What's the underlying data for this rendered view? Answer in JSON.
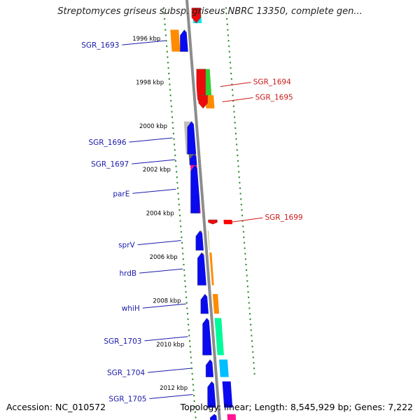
{
  "title": "Streptomyces griseus subsp. griseus NBRC 13350, complete gen...",
  "footer": {
    "accession": "Accession: NC_010572",
    "summary": "Topology: linear; Length: 8,545,929 bp; Genes: 7,222"
  },
  "colors": {
    "backbone": "#8c8c8c",
    "tick": "#2e8b2e",
    "left_label": "#1a1aaa",
    "right_label": "#cc1a1a",
    "forward_arrow": "#0a0af0",
    "reverse_arrow": "#ee0a0a"
  },
  "scale_labels": [
    {
      "label": "1996 kbp",
      "kbp": 1996
    },
    {
      "label": "1998 kbp",
      "kbp": 1998
    },
    {
      "label": "2000 kbp",
      "kbp": 2000
    },
    {
      "label": "2002 kbp",
      "kbp": 2002
    },
    {
      "label": "2004 kbp",
      "kbp": 2004
    },
    {
      "label": "2006 kbp",
      "kbp": 2006
    },
    {
      "label": "2008 kbp",
      "kbp": 2008
    },
    {
      "label": "2010 kbp",
      "kbp": 2010
    },
    {
      "label": "2012 kbp",
      "kbp": 2012
    }
  ],
  "genes": [
    {
      "name": "",
      "strand": "-",
      "start_kbp": 1994.6,
      "end_kbp": 1995.3,
      "color": "#00e5ee"
    },
    {
      "name": "SGR_1693",
      "strand": "+",
      "start_kbp": 1995.6,
      "end_kbp": 1996.6,
      "color": "#ff8c00"
    },
    {
      "name": "SGR_1694",
      "strand": "-",
      "start_kbp": 1997.4,
      "end_kbp": 1999.0,
      "color": "#32cd32"
    },
    {
      "name": "SGR_1695",
      "strand": "-",
      "start_kbp": 1998.6,
      "end_kbp": 1999.2,
      "color": "#ff8c00"
    },
    {
      "name": "SGR_1696",
      "strand": "+",
      "start_kbp": 1999.8,
      "end_kbp": 2001.3,
      "color": "#c0c0c0"
    },
    {
      "name": "SGR_1697",
      "strand": "+",
      "start_kbp": 2001.3,
      "end_kbp": 2001.8,
      "color": "#696969"
    },
    {
      "name": "parE",
      "strand": "+",
      "start_kbp": 2001.8,
      "end_kbp": 2004.0,
      "color": "#ff1493"
    },
    {
      "name": "SGR_1699",
      "strand": "-",
      "start_kbp": 2004.3,
      "end_kbp": 2004.5,
      "color": "#ff0000"
    },
    {
      "name": "sprV",
      "strand": "+",
      "start_kbp": 2004.8,
      "end_kbp": 2005.7,
      "color": "#bdb76b"
    },
    {
      "name": "hrdB",
      "strand": "+",
      "start_kbp": 2005.8,
      "end_kbp": 2007.3,
      "color": "#ff8c00"
    },
    {
      "name": "whiH",
      "strand": "+",
      "start_kbp": 2007.7,
      "end_kbp": 2008.6,
      "color": "#ff8c00"
    },
    {
      "name": "SGR_1703",
      "strand": "+",
      "start_kbp": 2008.8,
      "end_kbp": 2010.5,
      "color": "#00fa9a"
    },
    {
      "name": "SGR_1704",
      "strand": "+",
      "start_kbp": 2010.7,
      "end_kbp": 2011.5,
      "color": "#00bfff"
    },
    {
      "name": "SGR_1705",
      "strand": "+",
      "start_kbp": 2011.7,
      "end_kbp": 2012.9,
      "color": "#0a0af0"
    },
    {
      "name": "",
      "strand": "+",
      "start_kbp": 2013.2,
      "end_kbp": 2013.6,
      "color": "#ff1493"
    }
  ]
}
